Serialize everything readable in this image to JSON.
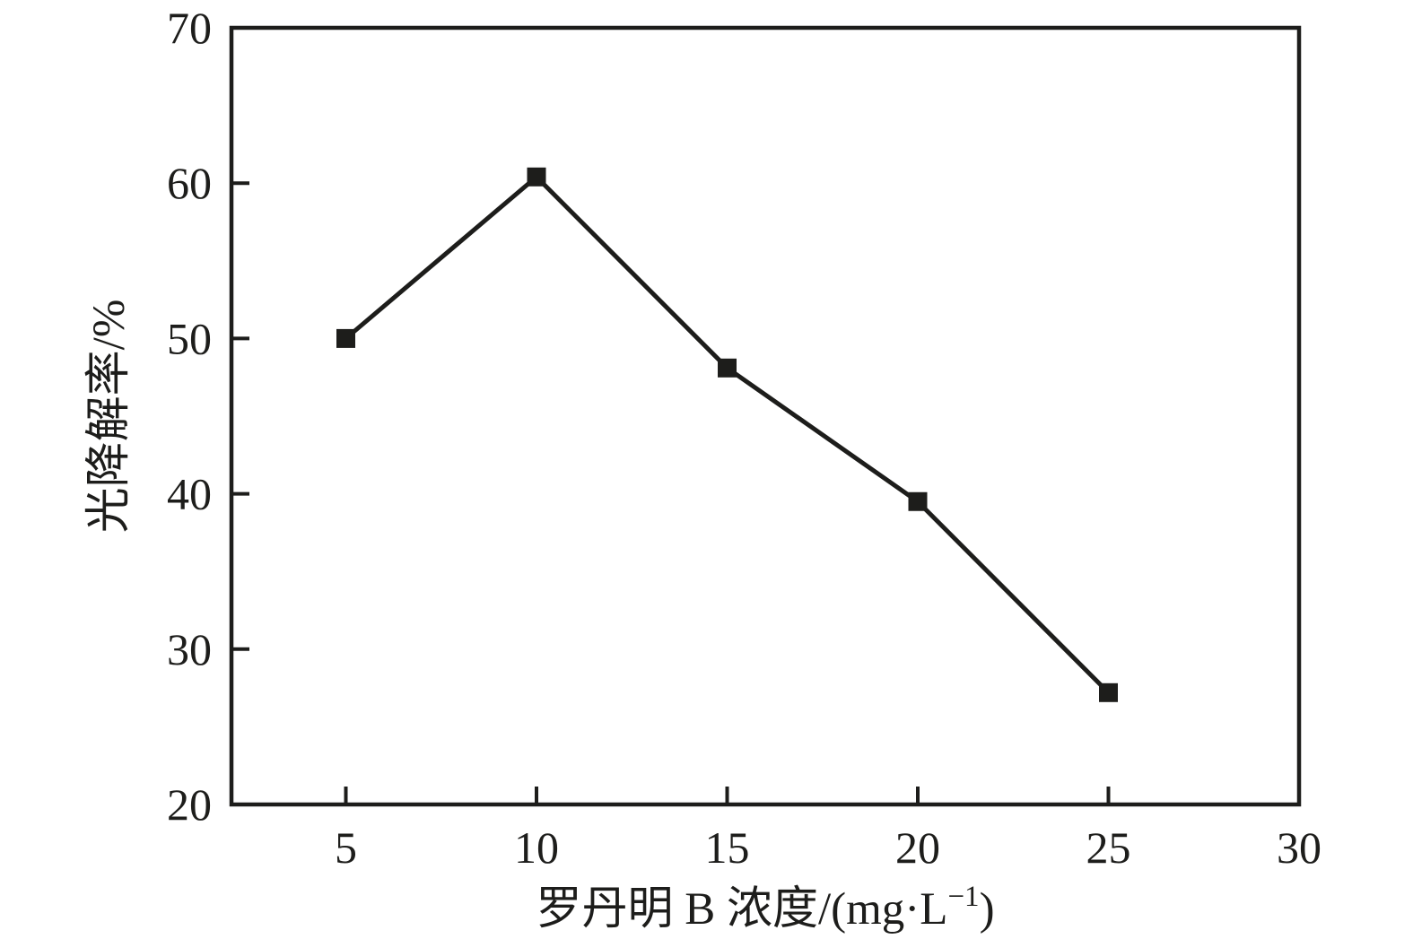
{
  "page": {
    "background": "#ffffff"
  },
  "chart_data": {
    "type": "line",
    "title": "",
    "xlabel": "罗丹明 B 浓度/(mg·L⁻¹)",
    "xlabel_parts": {
      "main": "罗丹明 B 浓度/(mg·L",
      "superscript": "−1",
      "close": ")"
    },
    "ylabel": "光降解率/%",
    "x": [
      5,
      10,
      15,
      20,
      25
    ],
    "y": [
      50,
      60.4,
      48.1,
      39.5,
      27.2
    ],
    "series": [
      {
        "name": "光降解率",
        "x": [
          5,
          10,
          15,
          20,
          25
        ],
        "values": [
          50,
          60.4,
          48.1,
          39.5,
          27.2
        ]
      }
    ],
    "xlim": [
      2,
      30
    ],
    "ylim": [
      20,
      70
    ],
    "x_ticks": [
      5,
      10,
      15,
      20,
      25,
      30
    ],
    "y_ticks": [
      20,
      30,
      40,
      50,
      60,
      70
    ],
    "grid": false,
    "legend": "none",
    "marker": "filled-square",
    "line_color": "#1d1d1b",
    "marker_color": "#1d1d1b",
    "axis_color": "#1d1d1b",
    "plot_background": "#ffffff"
  }
}
